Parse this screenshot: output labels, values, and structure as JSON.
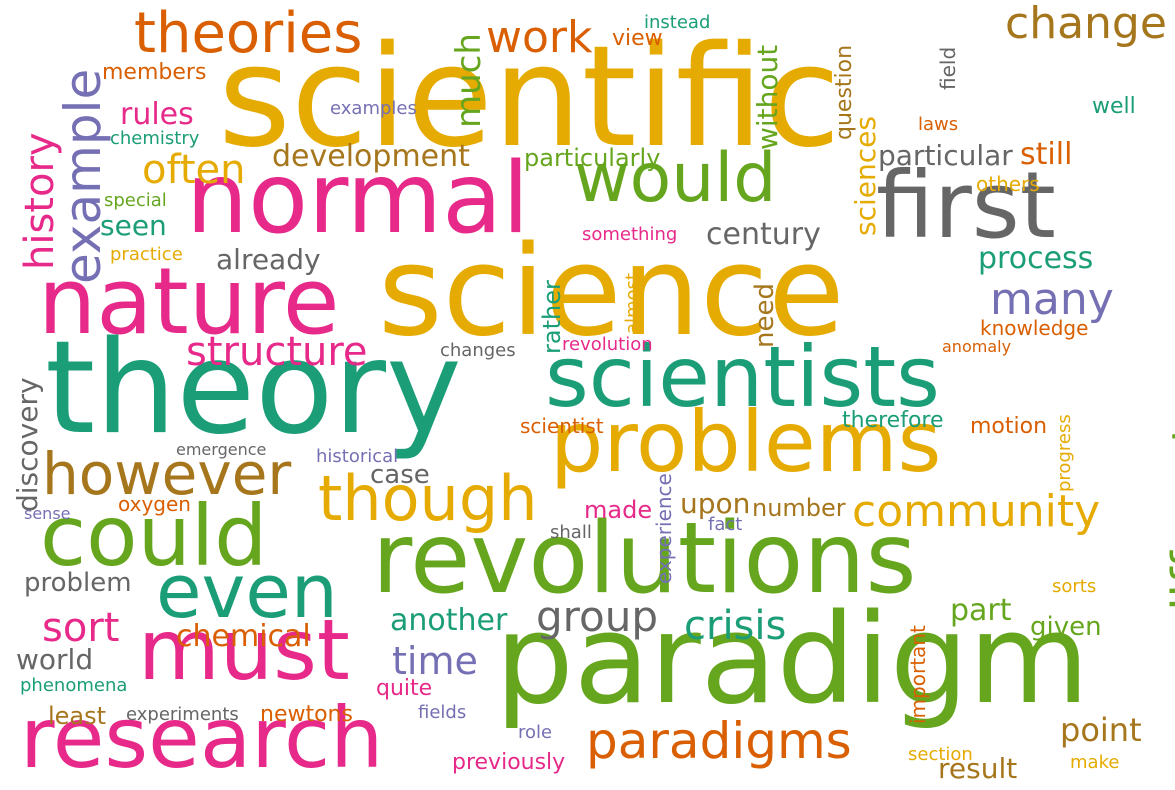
{
  "palette": {
    "teal": "#1b9e77",
    "orange": "#d95f02",
    "purple": "#7570b3",
    "magenta": "#e7298a",
    "green": "#66a61e",
    "gold": "#e6ab02",
    "brown": "#a6761d",
    "gray": "#666666"
  },
  "words": [
    {
      "text": "scientific",
      "color": "gold",
      "orientation": "horizontal"
    },
    {
      "text": "science",
      "color": "gold",
      "orientation": "horizontal"
    },
    {
      "text": "theory",
      "color": "teal",
      "orientation": "horizontal"
    },
    {
      "text": "paradigm",
      "color": "green",
      "orientation": "horizontal"
    },
    {
      "text": "normal",
      "color": "magenta",
      "orientation": "horizontal"
    },
    {
      "text": "nature",
      "color": "magenta",
      "orientation": "horizontal"
    },
    {
      "text": "revolutions",
      "color": "green",
      "orientation": "horizontal"
    },
    {
      "text": "scientists",
      "color": "teal",
      "orientation": "horizontal"
    },
    {
      "text": "first",
      "color": "gray",
      "orientation": "horizontal"
    },
    {
      "text": "problems",
      "color": "gold",
      "orientation": "horizontal"
    },
    {
      "text": "research",
      "color": "magenta",
      "orientation": "horizontal"
    },
    {
      "text": "could",
      "color": "green",
      "orientation": "horizontal"
    },
    {
      "text": "must",
      "color": "magenta",
      "orientation": "horizontal"
    },
    {
      "text": "would",
      "color": "green",
      "orientation": "horizontal"
    },
    {
      "text": "even",
      "color": "teal",
      "orientation": "horizontal"
    },
    {
      "text": "however",
      "color": "brown",
      "orientation": "horizontal"
    },
    {
      "text": "though",
      "color": "gold",
      "orientation": "horizontal"
    },
    {
      "text": "paradigms",
      "color": "orange",
      "orientation": "horizontal"
    },
    {
      "text": "theories",
      "color": "orange",
      "orientation": "horizontal"
    },
    {
      "text": "example",
      "color": "purple",
      "orientation": "vertical"
    },
    {
      "text": "different",
      "color": "green",
      "orientation": "vertical"
    },
    {
      "text": "many",
      "color": "purple",
      "orientation": "horizontal"
    },
    {
      "text": "community",
      "color": "gold",
      "orientation": "horizontal"
    },
    {
      "text": "change",
      "color": "brown",
      "orientation": "horizontal"
    },
    {
      "text": "work",
      "color": "orange",
      "orientation": "horizontal"
    },
    {
      "text": "structure",
      "color": "magenta",
      "orientation": "horizontal"
    },
    {
      "text": "group",
      "color": "gray",
      "orientation": "horizontal"
    },
    {
      "text": "crisis",
      "color": "teal",
      "orientation": "horizontal"
    },
    {
      "text": "sort",
      "color": "magenta",
      "orientation": "horizontal"
    },
    {
      "text": "history",
      "color": "magenta",
      "orientation": "vertical"
    },
    {
      "text": "often",
      "color": "gold",
      "orientation": "horizontal"
    },
    {
      "text": "development",
      "color": "brown",
      "orientation": "horizontal"
    },
    {
      "text": "much",
      "color": "green",
      "orientation": "vertical"
    },
    {
      "text": "time",
      "color": "purple",
      "orientation": "horizontal"
    },
    {
      "text": "point",
      "color": "brown",
      "orientation": "horizontal"
    },
    {
      "text": "another",
      "color": "teal",
      "orientation": "horizontal"
    },
    {
      "text": "century",
      "color": "gray",
      "orientation": "horizontal"
    },
    {
      "text": "process",
      "color": "teal",
      "orientation": "horizontal"
    },
    {
      "text": "particular",
      "color": "gray",
      "orientation": "horizontal"
    },
    {
      "text": "still",
      "color": "orange",
      "orientation": "horizontal"
    },
    {
      "text": "part",
      "color": "green",
      "orientation": "horizontal"
    },
    {
      "text": "rules",
      "color": "magenta",
      "orientation": "horizontal"
    },
    {
      "text": "already",
      "color": "gray",
      "orientation": "horizontal"
    },
    {
      "text": "world",
      "color": "gray",
      "orientation": "horizontal"
    },
    {
      "text": "chemical",
      "color": "orange",
      "orientation": "horizontal"
    },
    {
      "text": "upon",
      "color": "brown",
      "orientation": "horizontal"
    },
    {
      "text": "discovery",
      "color": "gray",
      "orientation": "vertical"
    },
    {
      "text": "case",
      "color": "gray",
      "orientation": "horizontal"
    },
    {
      "text": "problem",
      "color": "gray",
      "orientation": "horizontal"
    },
    {
      "text": "particularly",
      "color": "green",
      "orientation": "horizontal"
    },
    {
      "text": "result",
      "color": "brown",
      "orientation": "horizontal"
    },
    {
      "text": "seen",
      "color": "teal",
      "orientation": "horizontal"
    },
    {
      "text": "sciences",
      "color": "gold",
      "orientation": "vertical"
    },
    {
      "text": "without",
      "color": "green",
      "orientation": "vertical"
    },
    {
      "text": "newtons",
      "color": "orange",
      "orientation": "horizontal"
    },
    {
      "text": "least",
      "color": "brown",
      "orientation": "horizontal"
    },
    {
      "text": "number",
      "color": "brown",
      "orientation": "horizontal"
    },
    {
      "text": "made",
      "color": "magenta",
      "orientation": "horizontal"
    },
    {
      "text": "given",
      "color": "green",
      "orientation": "horizontal"
    },
    {
      "text": "view",
      "color": "orange",
      "orientation": "horizontal"
    },
    {
      "text": "members",
      "color": "orange",
      "orientation": "horizontal"
    },
    {
      "text": "quite",
      "color": "magenta",
      "orientation": "horizontal"
    },
    {
      "text": "motion",
      "color": "orange",
      "orientation": "horizontal"
    },
    {
      "text": "therefore",
      "color": "teal",
      "orientation": "horizontal"
    },
    {
      "text": "need",
      "color": "brown",
      "orientation": "vertical"
    },
    {
      "text": "knowledge",
      "color": "orange",
      "orientation": "horizontal"
    },
    {
      "text": "previously",
      "color": "magenta",
      "orientation": "horizontal"
    },
    {
      "text": "well",
      "color": "teal",
      "orientation": "horizontal"
    },
    {
      "text": "question",
      "color": "brown",
      "orientation": "vertical"
    },
    {
      "text": "others",
      "color": "gold",
      "orientation": "horizontal"
    },
    {
      "text": "scientist",
      "color": "orange",
      "orientation": "horizontal"
    },
    {
      "text": "rather",
      "color": "teal",
      "orientation": "vertical"
    },
    {
      "text": "historical",
      "color": "purple",
      "orientation": "horizontal"
    },
    {
      "text": "laws",
      "color": "orange",
      "orientation": "horizontal"
    },
    {
      "text": "oxygen",
      "color": "orange",
      "orientation": "horizontal"
    },
    {
      "text": "changes",
      "color": "gray",
      "orientation": "horizontal"
    },
    {
      "text": "experiments",
      "color": "gray",
      "orientation": "horizontal"
    },
    {
      "text": "important",
      "color": "orange",
      "orientation": "vertical"
    },
    {
      "text": "experience",
      "color": "purple",
      "orientation": "vertical"
    },
    {
      "text": "revolution",
      "color": "magenta",
      "orientation": "horizontal"
    },
    {
      "text": "phenomena",
      "color": "teal",
      "orientation": "horizontal"
    },
    {
      "text": "fields",
      "color": "purple",
      "orientation": "horizontal"
    },
    {
      "text": "examples",
      "color": "purple",
      "orientation": "horizontal"
    },
    {
      "text": "field",
      "color": "gray",
      "orientation": "vertical"
    },
    {
      "text": "chemistry",
      "color": "teal",
      "orientation": "horizontal"
    },
    {
      "text": "something",
      "color": "magenta",
      "orientation": "horizontal"
    },
    {
      "text": "emergence",
      "color": "gray",
      "orientation": "horizontal"
    },
    {
      "text": "instead",
      "color": "teal",
      "orientation": "horizontal"
    },
    {
      "text": "progress",
      "color": "gold",
      "orientation": "vertical"
    },
    {
      "text": "fact",
      "color": "purple",
      "orientation": "horizontal"
    },
    {
      "text": "anomaly",
      "color": "orange",
      "orientation": "horizontal"
    },
    {
      "text": "practice",
      "color": "gold",
      "orientation": "horizontal"
    },
    {
      "text": "special",
      "color": "green",
      "orientation": "horizontal"
    },
    {
      "text": "almost",
      "color": "gold",
      "orientation": "vertical"
    },
    {
      "text": "shall",
      "color": "gray",
      "orientation": "horizontal"
    },
    {
      "text": "section",
      "color": "gold",
      "orientation": "horizontal"
    },
    {
      "text": "role",
      "color": "purple",
      "orientation": "horizontal"
    },
    {
      "text": "sorts",
      "color": "gold",
      "orientation": "horizontal"
    },
    {
      "text": "make",
      "color": "gold",
      "orientation": "horizontal"
    },
    {
      "text": "sense",
      "color": "purple",
      "orientation": "horizontal"
    }
  ]
}
